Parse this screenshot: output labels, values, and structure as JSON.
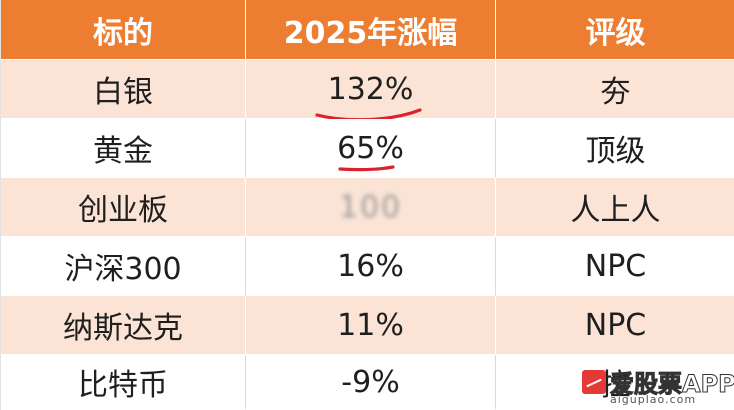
{
  "table": {
    "headers": [
      "标的",
      "2025年涨幅",
      "评级"
    ],
    "rows": [
      {
        "name": "白银",
        "change": "132%",
        "rating": "夯"
      },
      {
        "name": "黄金",
        "change": "65%",
        "rating": "顶级"
      },
      {
        "name": "创业板",
        "change": "100",
        "rating": "人上人"
      },
      {
        "name": "沪深300",
        "change": "16%",
        "rating": "NPC"
      },
      {
        "name": "纳斯达克",
        "change": "11%",
        "rating": "NPC"
      },
      {
        "name": "比特币",
        "change": "-9%",
        "rating": "拉"
      }
    ]
  },
  "colors": {
    "header_bg": "#ec7d31",
    "stripe_bg": "#fbe4d6",
    "underline": "#d9232e"
  },
  "watermark": {
    "text": "爱股票APP",
    "url": "aiguplao.com"
  }
}
